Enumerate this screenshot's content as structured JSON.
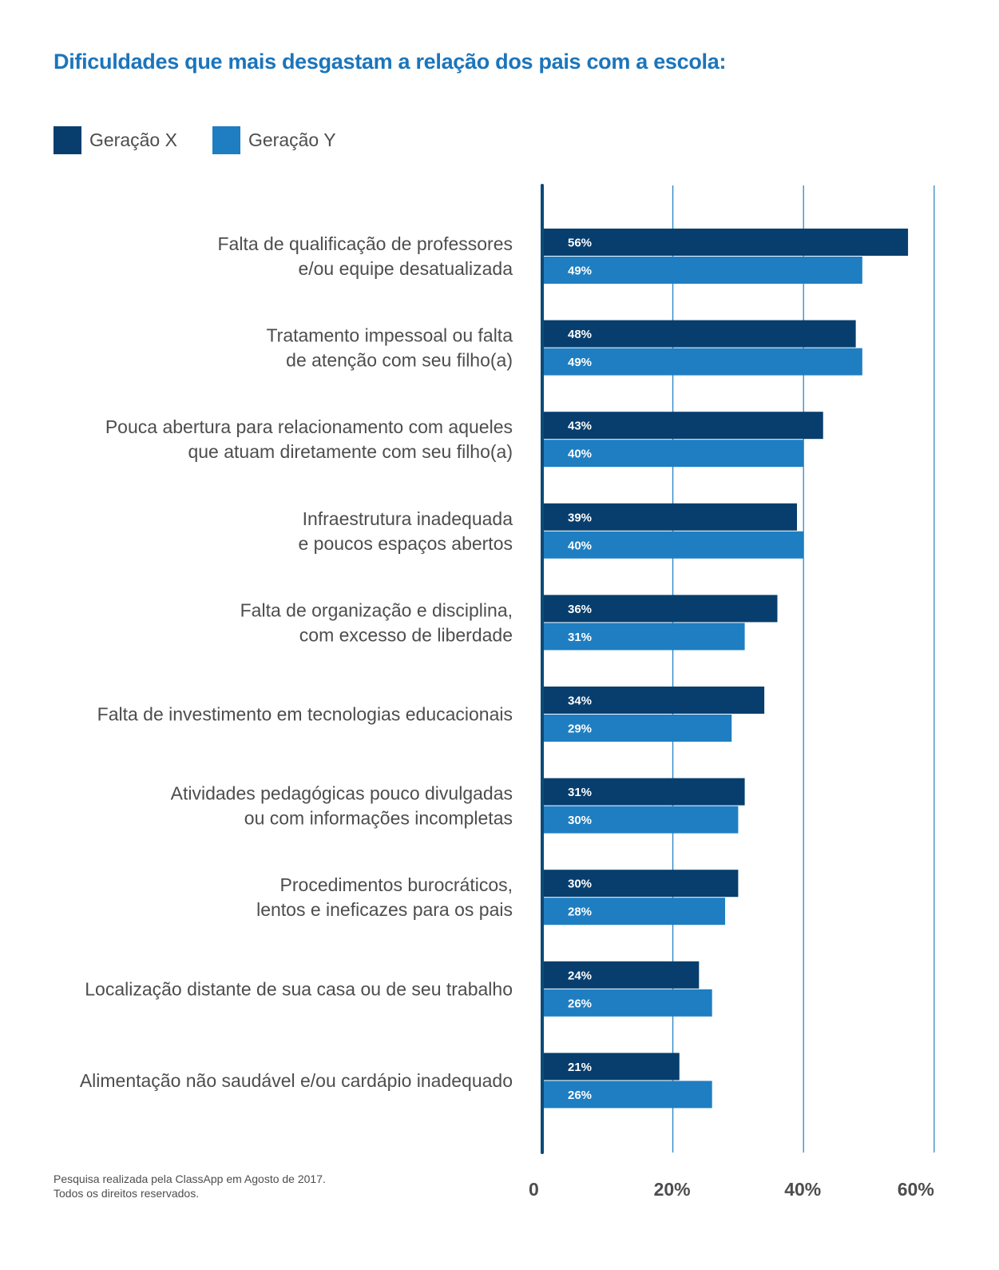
{
  "title": "Dificuldades que mais desgastam a relação dos pais com a escola:",
  "footnote": {
    "line1": "Pesquisa realizada pela ClassApp em Agosto de 2017.",
    "line2": "Todos os direitos reservados."
  },
  "colors": {
    "title": "#1b75bb",
    "series_x": "#073e6d",
    "series_y": "#1e7ec1",
    "axis": "#0c4a7a",
    "grid": "#1e7ec1",
    "text": "#4d4d4f"
  },
  "chart_data": {
    "type": "bar",
    "orientation": "horizontal",
    "title": "Dificuldades que mais desgastam a relação dos pais com a escola:",
    "xlabel": "",
    "ylabel": "",
    "xlim": [
      0,
      60
    ],
    "ticks": [
      0,
      20,
      40,
      60
    ],
    "tick_labels": [
      "0",
      "20%",
      "40%",
      "60%"
    ],
    "grid": true,
    "legend_position": "top-left",
    "categories": [
      [
        "Falta de qualificação de professores",
        "e/ou equipe desatualizada"
      ],
      [
        "Tratamento impessoal ou falta",
        "de atenção com seu filho(a)"
      ],
      [
        "Pouca abertura para relacionamento com aqueles",
        "que atuam diretamente com seu filho(a)"
      ],
      [
        "Infraestrutura inadequada",
        "e poucos espaços abertos"
      ],
      [
        "Falta de organização e disciplina,",
        "com excesso de liberdade"
      ],
      [
        "Falta de investimento em tecnologias educacionais"
      ],
      [
        "Atividades pedagógicas pouco divulgadas",
        "ou com informações incompletas"
      ],
      [
        "Procedimentos burocráticos,",
        "lentos e ineficazes para os pais"
      ],
      [
        "Localização distante de sua casa ou de seu trabalho"
      ],
      [
        "Alimentação não saudável e/ou cardápio inadequado"
      ]
    ],
    "series": [
      {
        "name": "Geração X",
        "color": "#073e6d",
        "values": [
          56,
          48,
          43,
          39,
          36,
          34,
          31,
          30,
          24,
          21
        ],
        "labels": [
          "56%",
          "48%",
          "43%",
          "39%",
          "36%",
          "34%",
          "31%",
          "30%",
          "24%",
          "21%"
        ]
      },
      {
        "name": "Geração Y",
        "color": "#1e7ec1",
        "values": [
          49,
          49,
          40,
          40,
          31,
          29,
          30,
          28,
          26,
          26
        ],
        "labels": [
          "49%",
          "49%",
          "40%",
          "40%",
          "31%",
          "29%",
          "30%",
          "28%",
          "26%",
          "26%"
        ]
      }
    ]
  }
}
